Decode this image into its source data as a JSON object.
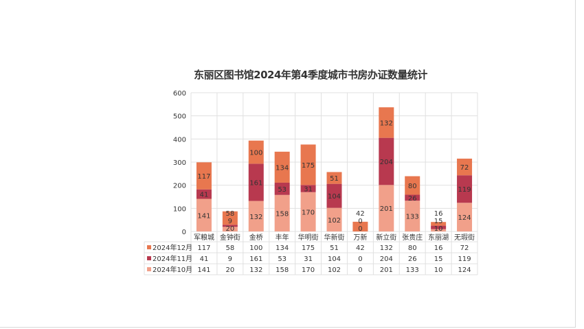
{
  "chart_data": {
    "type": "bar",
    "stacked": true,
    "title": "东丽区图书馆2024年第4季度城市书房办证数量统计",
    "categories": [
      "军粮城",
      "金钟街",
      "金桥",
      "丰年",
      "华明街",
      "华新街",
      "万新",
      "新立街",
      "张贵庄",
      "东丽湖",
      "无瑕街"
    ],
    "series": [
      {
        "name": "2024年12月",
        "color": "#E8774F",
        "values": [
          117,
          58,
          100,
          134,
          175,
          51,
          42,
          132,
          80,
          16,
          72
        ]
      },
      {
        "name": "2024年11月",
        "color": "#B8394F",
        "values": [
          41,
          9,
          161,
          53,
          31,
          104,
          0,
          204,
          26,
          15,
          119
        ]
      },
      {
        "name": "2024年10月",
        "color": "#F1A08A",
        "values": [
          141,
          20,
          132,
          158,
          170,
          102,
          0,
          201,
          133,
          10,
          124
        ]
      }
    ],
    "ylim": [
      0,
      600
    ],
    "yticks": [
      0,
      100,
      200,
      300,
      400,
      500,
      600
    ],
    "grid": true,
    "legend": "data-table"
  }
}
